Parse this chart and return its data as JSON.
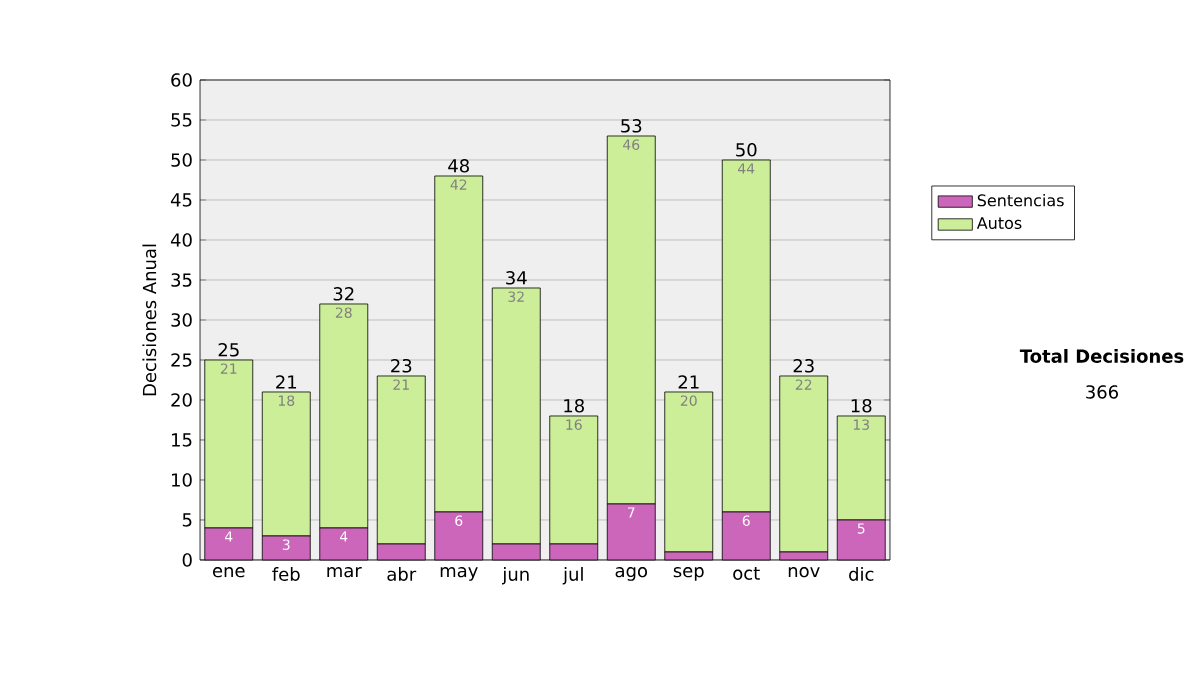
{
  "chart_data": {
    "type": "bar",
    "stacked": true,
    "ylabel": "Decisiones Anual",
    "categories": [
      "ene",
      "feb",
      "mar",
      "abr",
      "may",
      "jun",
      "jul",
      "ago",
      "sep",
      "oct",
      "nov",
      "dic"
    ],
    "series": [
      {
        "name": "Sentencias",
        "color": "#cc66bb",
        "values": [
          4,
          3,
          4,
          2,
          6,
          2,
          2,
          7,
          1,
          6,
          1,
          5
        ],
        "value_labels": [
          "4",
          "3",
          "4",
          null,
          "6",
          null,
          null,
          "7",
          null,
          "6",
          null,
          "5"
        ]
      },
      {
        "name": "Autos",
        "color": "#ccee99",
        "values": [
          21,
          18,
          28,
          21,
          42,
          32,
          16,
          46,
          20,
          44,
          22,
          13
        ],
        "value_labels": [
          "21",
          "18",
          "28",
          "21",
          "42",
          "32",
          "16",
          "46",
          "20",
          "44",
          "22",
          "13"
        ]
      }
    ],
    "totals": [
      "25",
      "21",
      "32",
      "23",
      "48",
      "34",
      "18",
      "53",
      "21",
      "50",
      "23",
      "18"
    ],
    "ylim": [
      0,
      60
    ],
    "yticks": [
      0,
      5,
      10,
      15,
      20,
      25,
      30,
      35,
      40,
      45,
      50,
      55,
      60
    ],
    "grid": "y",
    "legend": "right",
    "annotations": [
      "**Total Decisiones**",
      "366"
    ]
  }
}
